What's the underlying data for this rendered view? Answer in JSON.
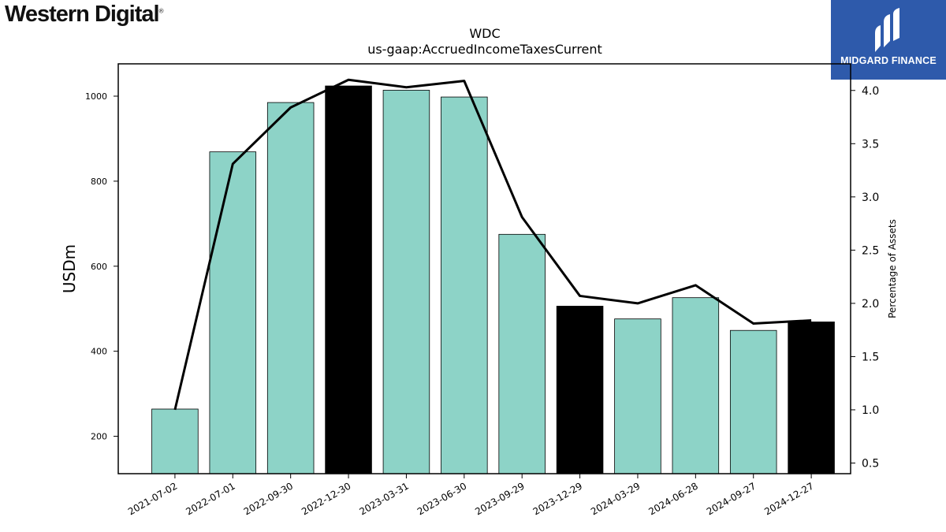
{
  "header": {
    "company_name": "Western Digital",
    "company_trademark": "®",
    "publisher_name": "MIDGARD FINANCE",
    "brand_color": "#2e5aab"
  },
  "chart_data": {
    "type": "bar",
    "title": "WDC",
    "subtitle": "us-gaap:AccruedIncomeTaxesCurrent",
    "ylabel": "USDm",
    "y2label": "Percentage of Assets",
    "categories": [
      "2021-07-02",
      "2022-07-01",
      "2022-09-30",
      "2022-12-30",
      "2023-03-31",
      "2023-06-30",
      "2023-09-29",
      "2023-12-29",
      "2024-03-29",
      "2024-06-28",
      "2024-09-27",
      "2024-12-27"
    ],
    "series": [
      {
        "type": "bar",
        "values": [
          264,
          869,
          985,
          1024,
          1014,
          998,
          675,
          506,
          476,
          526,
          449,
          469
        ]
      },
      {
        "type": "line",
        "axis": "right",
        "values": [
          1.0,
          3.31,
          3.84,
          4.1,
          4.03,
          4.09,
          2.81,
          2.07,
          2.0,
          2.17,
          1.81,
          1.84
        ]
      }
    ],
    "bar_colors": [
      "#8dd3c7",
      "#8dd3c7",
      "#8dd3c7",
      "#000000",
      "#8dd3c7",
      "#8dd3c7",
      "#8dd3c7",
      "#000000",
      "#8dd3c7",
      "#8dd3c7",
      "#8dd3c7",
      "#000000"
    ],
    "line_color": "#000000",
    "ylim": [
      112,
      1076
    ],
    "yticks": [
      200,
      400,
      600,
      800,
      1000
    ],
    "y2lim": [
      0.4,
      4.25
    ],
    "y2ticks": [
      0.5,
      1.0,
      1.5,
      2.0,
      2.5,
      3.0,
      3.5,
      4.0
    ],
    "grid": false,
    "legend": "none"
  }
}
